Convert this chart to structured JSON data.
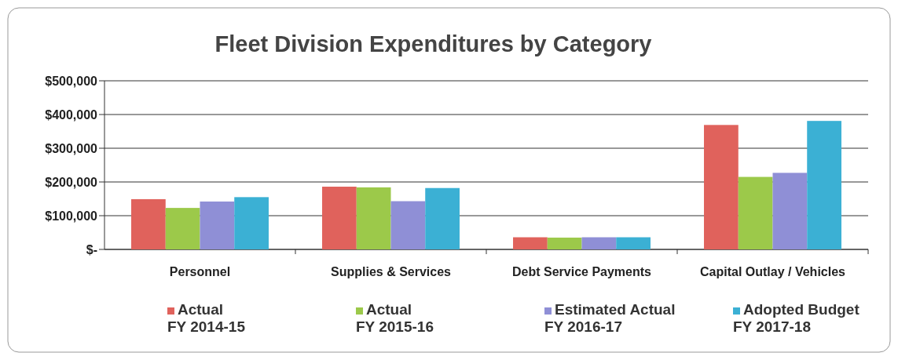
{
  "chart_data": {
    "type": "bar",
    "title": "Fleet  Division Expenditures by Category",
    "categories": [
      "Personnel",
      "Supplies & Services",
      "Debt Service Payments",
      "Capital Outlay / Vehicles"
    ],
    "series": [
      {
        "name": "Actual\nFY 2014-15",
        "color": "#e0625c",
        "values": [
          149000,
          186000,
          36000,
          369000
        ]
      },
      {
        "name": "Actual\nFY 2015-16",
        "color": "#9cc94a",
        "values": [
          123000,
          184000,
          35000,
          215000
        ]
      },
      {
        "name": "Estimated Actual\nFY 2016-17",
        "color": "#8f8fd6",
        "values": [
          142000,
          143000,
          36000,
          227000
        ]
      },
      {
        "name": "Adopted Budget\nFY 2017-18",
        "color": "#3bb0d4",
        "values": [
          155000,
          182000,
          36000,
          381000
        ]
      }
    ],
    "ylim": [
      0,
      500000
    ],
    "yticks": [
      {
        "value": 0,
        "label": "$-"
      },
      {
        "value": 100000,
        "label": "$100,000"
      },
      {
        "value": 200000,
        "label": "$200,000"
      },
      {
        "value": 300000,
        "label": "$300,000"
      },
      {
        "value": 400000,
        "label": "$400,000"
      },
      {
        "value": 500000,
        "label": "$500,000"
      }
    ],
    "grid": "y",
    "legend": "bottom"
  }
}
